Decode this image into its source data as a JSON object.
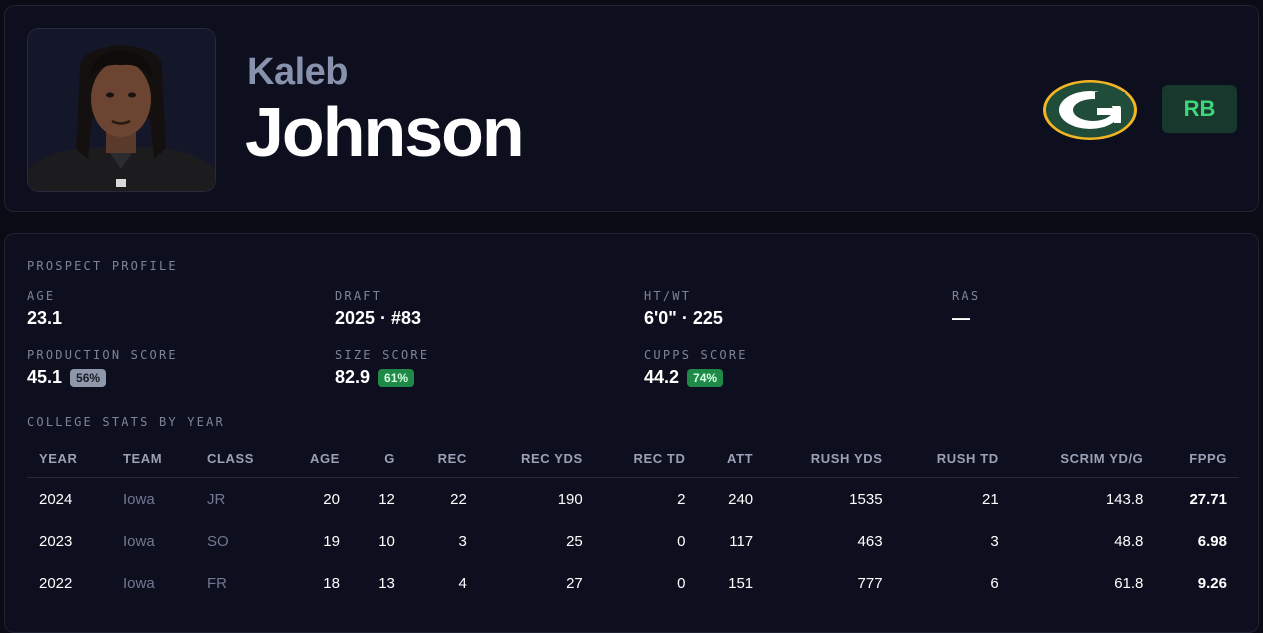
{
  "player": {
    "first_name": "Kaleb",
    "last_name": "Johnson",
    "position": "RB",
    "team_logo_icon": "packers-g-logo-icon"
  },
  "colors": {
    "background": "#0a0b14",
    "card": "#0d0f1e",
    "position_badge_bg": "#18372d",
    "position_badge_text": "#3fd67b",
    "percent_green": "#1f8a48",
    "percent_grey": "#8f97ab",
    "logo_green": "#1f4d3a",
    "logo_gold": "#f2b523"
  },
  "profile": {
    "section_title": "PROSPECT PROFILE",
    "fields": [
      {
        "label": "AGE",
        "value": "23.1"
      },
      {
        "label": "DRAFT",
        "value": "2025 · #83"
      },
      {
        "label": "HT/WT",
        "value": "6'0\" · 225"
      },
      {
        "label": "RAS",
        "value": "—"
      }
    ],
    "scores": [
      {
        "label": "PRODUCTION SCORE",
        "value": "45.1",
        "percentile": "56%"
      },
      {
        "label": "SIZE SCORE",
        "value": "82.9",
        "percentile": "61%"
      },
      {
        "label": "CUPPS SCORE",
        "value": "44.2",
        "percentile": "74%"
      }
    ]
  },
  "college": {
    "section_title": "COLLEGE STATS BY YEAR",
    "columns": [
      "YEAR",
      "TEAM",
      "CLASS",
      "AGE",
      "G",
      "REC",
      "REC YDS",
      "REC TD",
      "ATT",
      "RUSH YDS",
      "RUSH TD",
      "SCRIM YD/G",
      "FPPG"
    ],
    "rows": [
      [
        "2024",
        "Iowa",
        "JR",
        "20",
        "12",
        "22",
        "190",
        "2",
        "240",
        "1535",
        "21",
        "143.8",
        "27.71"
      ],
      [
        "2023",
        "Iowa",
        "SO",
        "19",
        "10",
        "3",
        "25",
        "0",
        "117",
        "463",
        "3",
        "48.8",
        "6.98"
      ],
      [
        "2022",
        "Iowa",
        "FR",
        "18",
        "13",
        "4",
        "27",
        "0",
        "151",
        "777",
        "6",
        "61.8",
        "9.26"
      ]
    ]
  }
}
